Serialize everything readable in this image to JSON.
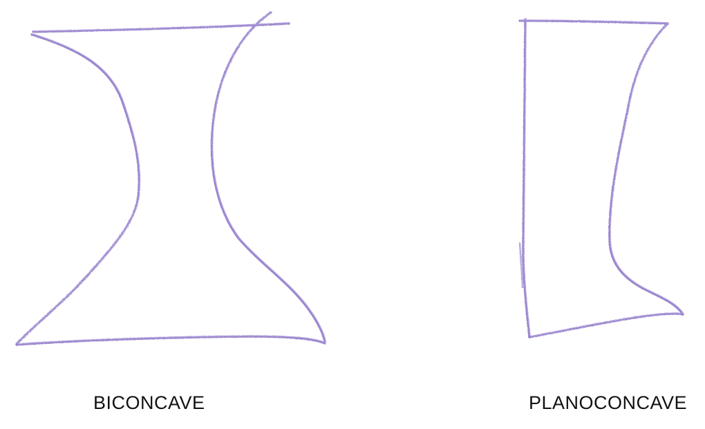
{
  "lenses": [
    {
      "id": "biconcave",
      "label": "BICONCAVE"
    },
    {
      "id": "planoconcave",
      "label": "PLANOCONCAVE"
    }
  ],
  "colors": {
    "stroke": "#8e78c8",
    "stroke_light": "#b3a4dd",
    "label": "#111111",
    "background": "#ffffff"
  }
}
